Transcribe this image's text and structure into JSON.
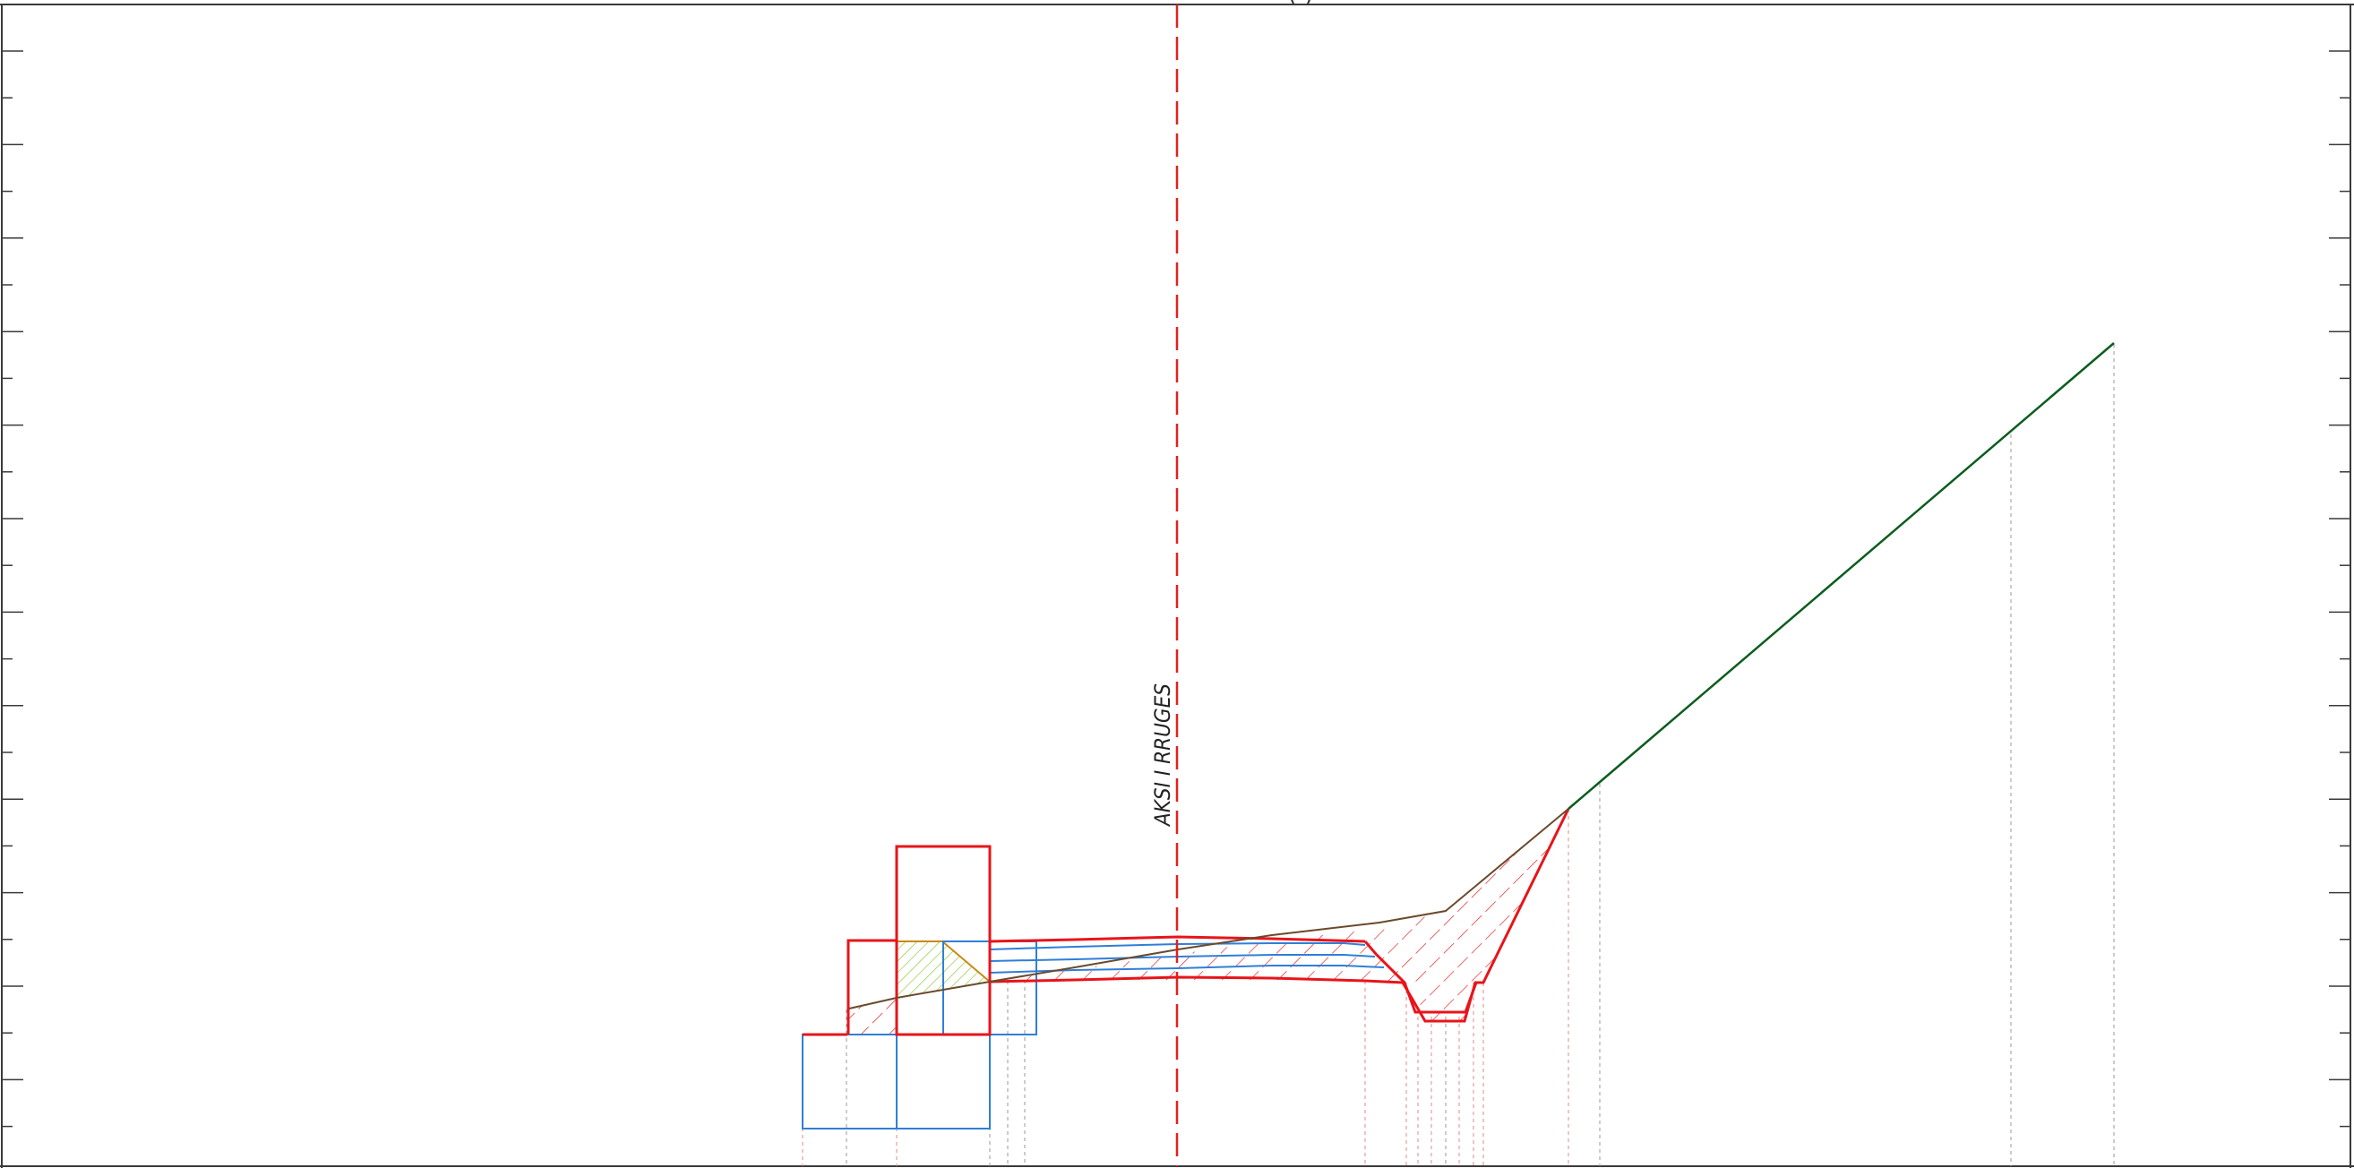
{
  "drawing": {
    "axis_label": "AKSI I RRUGES",
    "title_fragment": "(                  )"
  },
  "colors": {
    "frame": "#3a3a3a",
    "axis": "#e02020",
    "excavation": "#e8141a",
    "structure": "#2f7fd8",
    "fill": "#7cc61e",
    "terrain": "#6b4a2b",
    "slope": "#0b5d1e",
    "guide_red": "#e58a8a",
    "guide_gray": "#9a9a9a"
  }
}
